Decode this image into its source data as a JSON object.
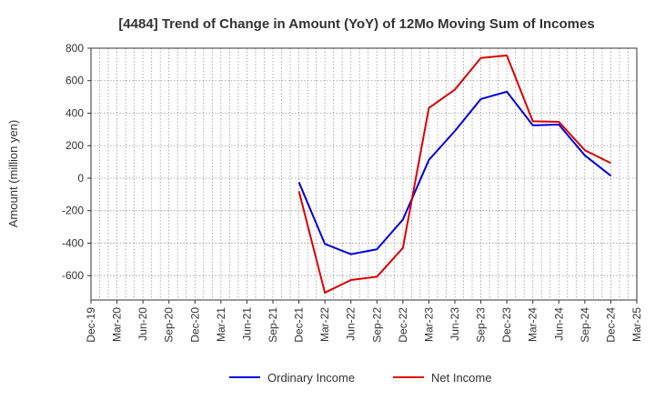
{
  "chart_data": {
    "type": "line",
    "title": "[4484]  Trend of Change in Amount (YoY) of 12Mo Moving Sum of Incomes",
    "ylabel": "Amount (million yen)",
    "xlabel": "",
    "ylim": [
      -750,
      800
    ],
    "yticks": [
      800,
      600,
      400,
      200,
      0,
      -200,
      -400,
      -600
    ],
    "x": [
      "Dec-19",
      "Mar-20",
      "Jun-20",
      "Sep-20",
      "Dec-20",
      "Mar-21",
      "Jun-21",
      "Sep-21",
      "Dec-21",
      "Mar-22",
      "Jun-22",
      "Sep-22",
      "Dec-22",
      "Mar-23",
      "Jun-23",
      "Sep-23",
      "Dec-23",
      "Mar-24",
      "Jun-24",
      "Sep-24",
      "Dec-24",
      "Mar-25"
    ],
    "grid": true,
    "legend_position": "bottom",
    "series": [
      {
        "name": "Ordinary Income",
        "color": "#0000dd",
        "values": [
          null,
          null,
          null,
          null,
          null,
          null,
          null,
          null,
          -25,
          -405,
          -468,
          -438,
          -255,
          112,
          290,
          487,
          532,
          325,
          330,
          140,
          15,
          null
        ]
      },
      {
        "name": "Net Income",
        "color": "#dd0000",
        "values": [
          null,
          null,
          null,
          null,
          null,
          null,
          null,
          null,
          -80,
          -705,
          -627,
          -607,
          -430,
          432,
          545,
          740,
          755,
          350,
          347,
          172,
          93,
          null
        ]
      }
    ]
  }
}
